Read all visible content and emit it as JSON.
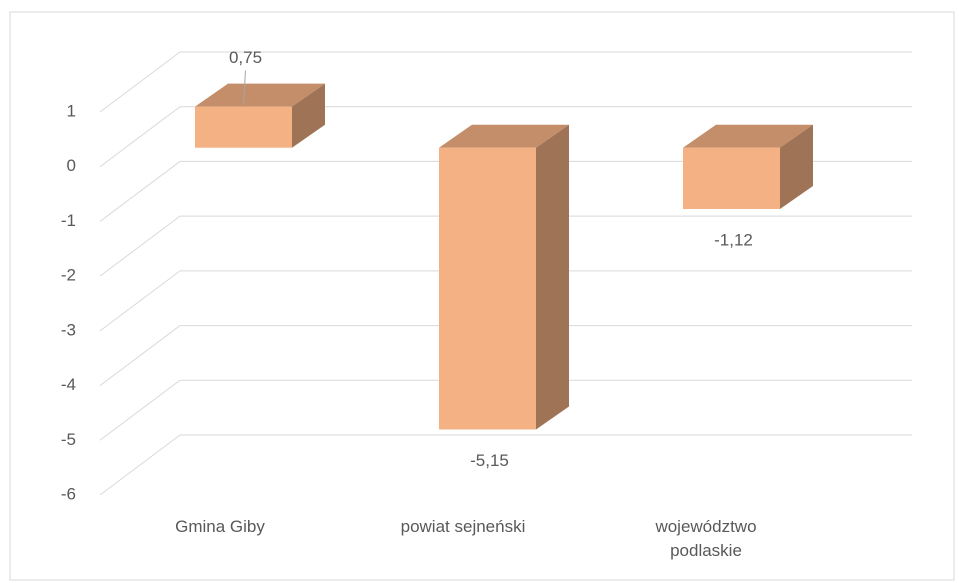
{
  "chart_data": {
    "type": "bar3d",
    "categories": [
      "Gmina Giby",
      "powiat sejneński",
      "województwo podlaskie"
    ],
    "values": [
      0.75,
      -5.15,
      -1.12
    ],
    "value_labels": [
      "0,75",
      "-5,15",
      "-1,12"
    ],
    "color": "#f4b183",
    "ylim": [
      -6,
      1
    ],
    "yticks": [
      1,
      0,
      -1,
      -2,
      -3,
      -4,
      -5,
      -6
    ],
    "grid": true
  }
}
